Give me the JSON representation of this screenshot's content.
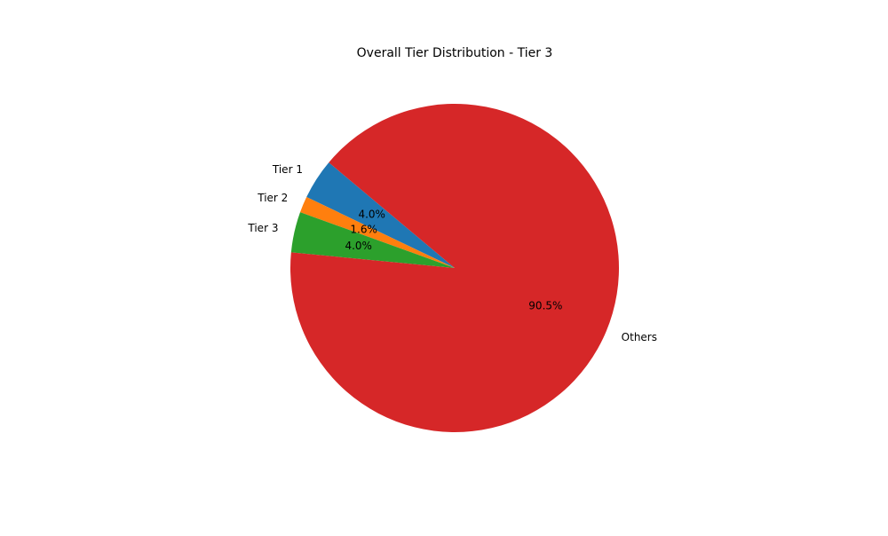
{
  "chart_data": {
    "type": "pie",
    "title": "Overall Tier Distribution - Tier 3",
    "slices": [
      {
        "label": "Tier 1",
        "value": 4.0,
        "pct_label": "4.0%",
        "color": "#1f77b4"
      },
      {
        "label": "Tier 2",
        "value": 1.6,
        "pct_label": "1.6%",
        "color": "#ff7f0e"
      },
      {
        "label": "Tier 3",
        "value": 4.0,
        "pct_label": "4.0%",
        "color": "#2ca02c"
      },
      {
        "label": "Others",
        "value": 90.5,
        "pct_label": "90.5%",
        "color": "#d62728"
      }
    ],
    "start_angle_deg": 140,
    "direction": "counterclockwise",
    "legend": "none"
  }
}
